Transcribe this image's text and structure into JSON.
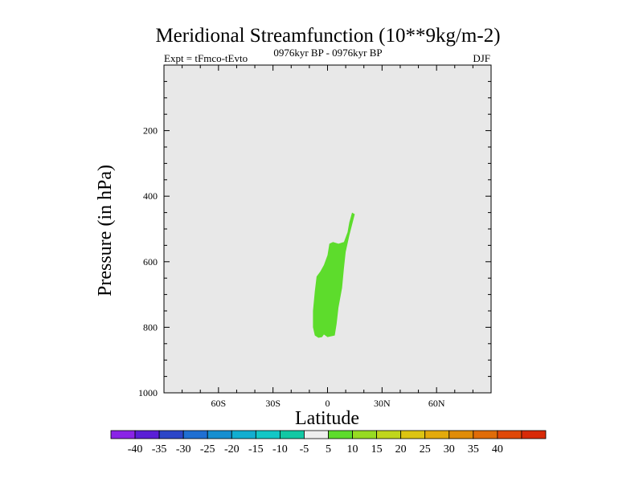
{
  "chart_data": {
    "type": "filled-contour",
    "title": "Meridional Streamfunction (10**9kg/m-2)",
    "left_subtitle": "Expt = tFmco-tEvto",
    "center_subtitle": "0976kyr BP - 0976kyr BP",
    "right_subtitle": "DJF",
    "xlabel": "Latitude",
    "ylabel": "Pressure (in hPa)",
    "xlim": [
      -90,
      90
    ],
    "ylim": [
      1000,
      0
    ],
    "y_reversed": true,
    "x_ticks": [
      {
        "value": -60,
        "label": "60S"
      },
      {
        "value": -30,
        "label": "30S"
      },
      {
        "value": 0,
        "label": "0"
      },
      {
        "value": 30,
        "label": "30N"
      },
      {
        "value": 60,
        "label": "60N"
      }
    ],
    "y_ticks": [
      {
        "value": 200,
        "label": "200"
      },
      {
        "value": 400,
        "label": "400"
      },
      {
        "value": 600,
        "label": "600"
      },
      {
        "value": 800,
        "label": "800"
      },
      {
        "value": 1000,
        "label": "1000"
      }
    ],
    "background_color": "#e8e8e8",
    "regions": [
      {
        "name": "positive-5-to-10",
        "level_range": [
          5,
          10
        ],
        "color": "#5ddc2c",
        "outline": [
          [
            13.5,
            450
          ],
          [
            15,
            455
          ],
          [
            12,
            520
          ],
          [
            10,
            570
          ],
          [
            9,
            620
          ],
          [
            8,
            680
          ],
          [
            6,
            740
          ],
          [
            5,
            790
          ],
          [
            4,
            825
          ],
          [
            0,
            830
          ],
          [
            -2,
            822
          ],
          [
            -3,
            830
          ],
          [
            -5,
            832
          ],
          [
            -7,
            825
          ],
          [
            -8,
            800
          ],
          [
            -8,
            750
          ],
          [
            -7,
            690
          ],
          [
            -6,
            645
          ],
          [
            -4,
            630
          ],
          [
            -2,
            610
          ],
          [
            0,
            580
          ],
          [
            1,
            545
          ],
          [
            3,
            540
          ],
          [
            6,
            545
          ],
          [
            9,
            540
          ],
          [
            11,
            510
          ],
          [
            12,
            480
          ]
        ]
      }
    ],
    "colorbar": {
      "boxes": [
        "#8a23e6",
        "#5a1fd6",
        "#2c46c8",
        "#1f6fd2",
        "#178fd0",
        "#12aed0",
        "#12c7c6",
        "#12c8a4",
        "#eeeeee",
        "#5ddc2c",
        "#97db22",
        "#c0d61c",
        "#ddc412",
        "#e3aa0c",
        "#e08c08",
        "#e06c08",
        "#e04808",
        "#d82a08"
      ],
      "labels": [
        "-40",
        "-35",
        "-30",
        "-25",
        "-20",
        "-15",
        "-10",
        "-5",
        "5",
        "10",
        "15",
        "20",
        "25",
        "30",
        "35",
        "40"
      ]
    }
  }
}
